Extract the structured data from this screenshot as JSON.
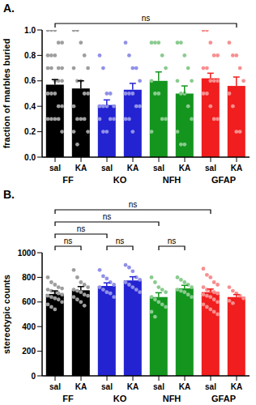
{
  "chart_data": [
    {
      "type": "bar",
      "title": "A.",
      "y_label": "fraction of marbles buried",
      "categories": [
        "sal",
        "KA",
        "sal",
        "KA",
        "sal",
        "KA",
        "sal",
        "KA"
      ],
      "groups": [
        "FF",
        "KO",
        "NFH",
        "GFAP"
      ],
      "values": [
        0.57,
        0.54,
        0.41,
        0.53,
        0.6,
        0.5,
        0.62,
        0.56
      ],
      "errors": [
        0.04,
        0.06,
        0.04,
        0.05,
        0.07,
        0.06,
        0.04,
        0.07
      ],
      "points": [
        [
          1.0,
          1.0,
          1.0,
          0.9,
          0.9,
          0.8,
          0.8,
          0.8,
          0.7,
          0.7,
          0.7,
          0.7,
          0.6,
          0.6,
          0.6,
          0.5,
          0.5,
          0.5,
          0.4,
          0.4,
          0.3,
          0.3,
          0.3,
          0.3,
          0.2
        ],
        [
          1.0,
          1.0,
          0.9,
          0.8,
          0.7,
          0.7,
          0.6,
          0.6,
          0.5,
          0.5,
          0.4,
          0.3,
          0.3,
          0.3,
          0.2,
          0.2,
          0.1
        ],
        [
          0.8,
          0.7,
          0.5,
          0.5,
          0.4,
          0.4,
          0.4,
          0.4,
          0.3,
          0.3,
          0.3,
          0.2,
          0.2
        ],
        [
          0.9,
          0.8,
          0.7,
          0.7,
          0.6,
          0.5,
          0.5,
          0.5,
          0.4,
          0.4,
          0.3,
          0.3,
          0.2
        ],
        [
          0.9,
          0.9,
          0.9,
          0.8,
          0.7,
          0.6,
          0.5,
          0.5,
          0.3,
          0.3,
          0.2
        ],
        [
          0.9,
          0.9,
          0.8,
          0.7,
          0.6,
          0.6,
          0.5,
          0.5,
          0.4,
          0.3,
          0.2,
          0.1,
          0.1
        ],
        [
          1.0,
          1.0,
          0.9,
          0.8,
          0.8,
          0.7,
          0.7,
          0.6,
          0.6,
          0.6,
          0.5,
          0.5,
          0.4,
          0.3,
          0.3
        ],
        [
          0.9,
          0.8,
          0.8,
          0.7,
          0.6,
          0.5,
          0.4,
          0.2,
          0.2
        ]
      ],
      "colors": [
        "#000000",
        "#000000",
        "#2323d2",
        "#2323d2",
        "#14961e",
        "#14961e",
        "#f01e1e",
        "#f01e1e"
      ],
      "ylim": [
        0,
        1
      ],
      "yticks": [
        {
          "value": 0,
          "label": "0.0"
        },
        0.2,
        0.4,
        0.6,
        0.8,
        {
          "value": 1,
          "label": "1.0"
        }
      ],
      "grid": false,
      "comparisons": [
        {
          "from": 0,
          "to": 7,
          "label": "ns"
        }
      ]
    },
    {
      "type": "bar",
      "title": "B.",
      "y_label": "stereotypic counts",
      "categories": [
        "sal",
        "KA",
        "sal",
        "KA",
        "sal",
        "KA",
        "sal",
        "KA"
      ],
      "groups": [
        "FF",
        "KO",
        "NFH",
        "GFAP"
      ],
      "values": [
        665,
        695,
        730,
        775,
        640,
        710,
        680,
        640
      ],
      "errors": [
        25,
        30,
        25,
        30,
        35,
        25,
        25,
        20
      ],
      "points": [
        [
          800,
          760,
          740,
          720,
          710,
          700,
          690,
          680,
          670,
          660,
          650,
          640,
          630,
          620,
          600,
          580,
          560,
          540
        ],
        [
          860,
          800,
          760,
          740,
          720,
          700,
          690,
          680,
          660,
          650,
          640,
          620,
          600,
          570
        ],
        [
          860,
          810,
          790,
          760,
          740,
          720,
          700,
          680,
          670,
          640
        ],
        [
          900,
          880,
          850,
          800,
          780,
          760,
          740,
          720,
          700,
          680
        ],
        [
          800,
          760,
          720,
          700,
          680,
          640,
          620,
          600,
          580,
          560,
          520,
          480
        ],
        [
          800,
          780,
          760,
          740,
          720,
          700,
          690,
          680,
          660,
          640
        ],
        [
          870,
          820,
          800,
          760,
          740,
          720,
          700,
          690,
          680,
          670,
          660,
          650,
          640,
          620,
          600,
          580,
          560,
          540,
          520,
          500
        ],
        [
          720,
          690,
          670,
          650,
          630,
          610,
          590
        ]
      ],
      "colors": [
        "#000000",
        "#000000",
        "#2323d2",
        "#2323d2",
        "#14961e",
        "#14961e",
        "#f01e1e",
        "#f01e1e"
      ],
      "ylim": [
        0,
        1000
      ],
      "yticks": [
        0,
        200,
        400,
        600,
        800,
        1000
      ],
      "grid": false,
      "comparisons": [
        {
          "from": 0,
          "to": 1,
          "label": "ns"
        },
        {
          "from": 2,
          "to": 3,
          "label": "ns"
        },
        {
          "from": 4,
          "to": 5,
          "label": "ns"
        },
        {
          "from": 0,
          "to": 2,
          "label": "ns"
        },
        {
          "from": 0,
          "to": 4,
          "label": "ns"
        },
        {
          "from": 0,
          "to": 6,
          "label": "ns"
        }
      ]
    }
  ]
}
